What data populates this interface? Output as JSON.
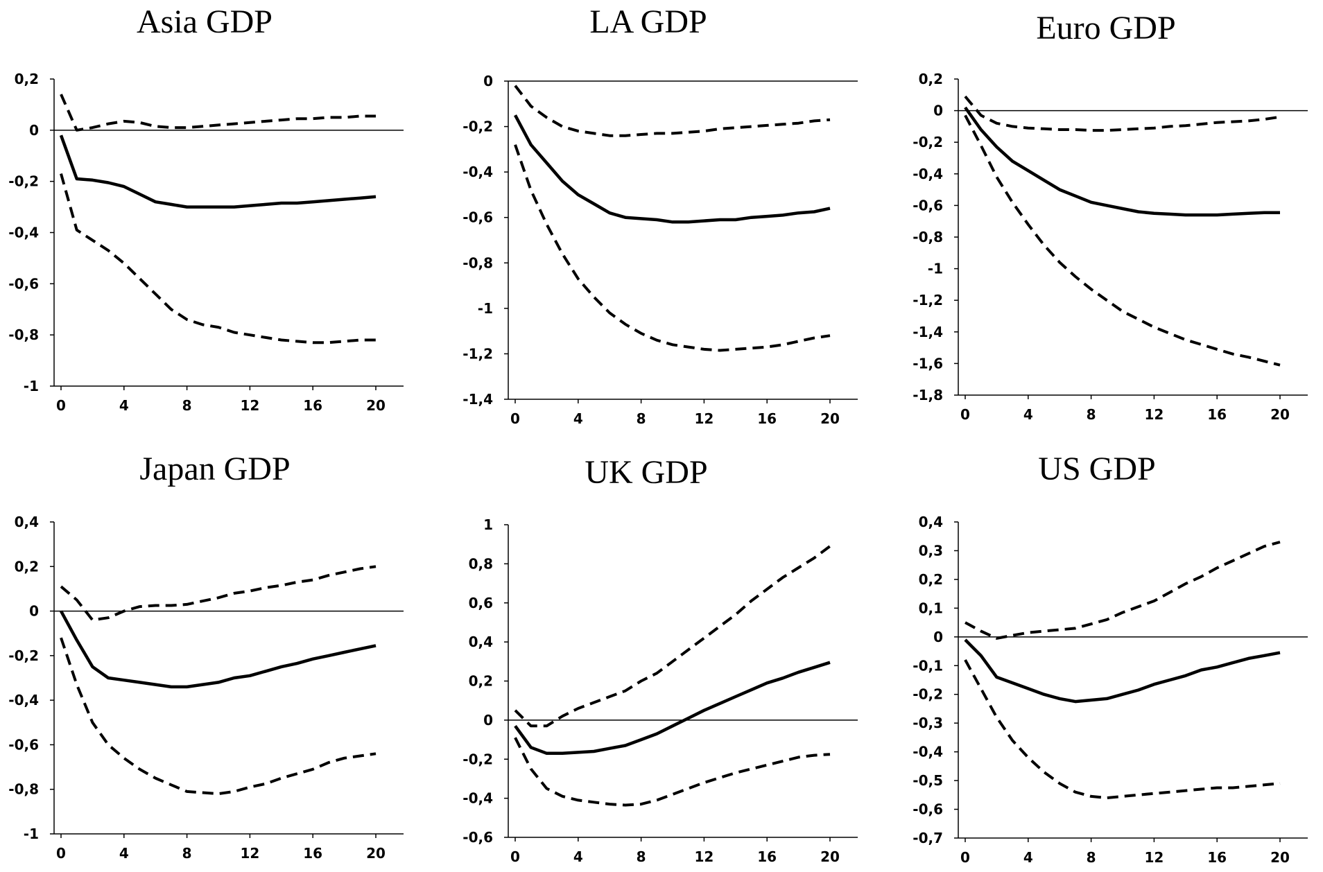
{
  "figure": {
    "background": "#ffffff",
    "line_color": "#000000"
  },
  "chart_data": [
    {
      "id": "asia",
      "type": "line",
      "title": "Asia GDP",
      "xlim": [
        0,
        20
      ],
      "ylim": [
        -1,
        0.2
      ],
      "x_ticks": [
        0,
        4,
        8,
        12,
        16,
        20
      ],
      "x_tick_labels": [
        "0",
        "4",
        "8",
        "12",
        "16",
        "20"
      ],
      "y_ticks": [
        0.2,
        0,
        -0.2,
        -0.4,
        -0.6,
        -0.8,
        -1
      ],
      "y_tick_labels": [
        "0,2",
        "0",
        "-0,2",
        "-0,4",
        "-0,6",
        "-0,8",
        "-1"
      ],
      "x": [
        0,
        1,
        2,
        3,
        4,
        5,
        6,
        7,
        8,
        9,
        10,
        11,
        12,
        13,
        14,
        15,
        16,
        17,
        18,
        19,
        20
      ],
      "series": [
        {
          "name": "upper band",
          "style": "dashed",
          "values": [
            0.14,
            0.0,
            0.01,
            0.025,
            0.035,
            0.03,
            0.015,
            0.01,
            0.01,
            0.015,
            0.02,
            0.025,
            0.03,
            0.035,
            0.04,
            0.045,
            0.045,
            0.05,
            0.05,
            0.055,
            0.055
          ]
        },
        {
          "name": "response",
          "style": "solid",
          "values": [
            -0.02,
            -0.19,
            -0.195,
            -0.205,
            -0.22,
            -0.25,
            -0.28,
            -0.29,
            -0.3,
            -0.3,
            -0.3,
            -0.3,
            -0.295,
            -0.29,
            -0.285,
            -0.285,
            -0.28,
            -0.275,
            -0.27,
            -0.265,
            -0.26
          ]
        },
        {
          "name": "lower band",
          "style": "dashed",
          "values": [
            -0.17,
            -0.39,
            -0.43,
            -0.47,
            -0.52,
            -0.58,
            -0.64,
            -0.7,
            -0.74,
            -0.76,
            -0.77,
            -0.79,
            -0.8,
            -0.81,
            -0.82,
            -0.825,
            -0.83,
            -0.83,
            -0.825,
            -0.82,
            -0.82
          ]
        }
      ]
    },
    {
      "id": "la",
      "type": "line",
      "title": "LA GDP",
      "xlim": [
        0,
        20
      ],
      "ylim": [
        -1.4,
        0
      ],
      "x_ticks": [
        0,
        4,
        8,
        12,
        16,
        20
      ],
      "x_tick_labels": [
        "0",
        "4",
        "8",
        "12",
        "16",
        "20"
      ],
      "y_ticks": [
        0,
        -0.2,
        -0.4,
        -0.6,
        -0.8,
        -1,
        -1.2,
        -1.4
      ],
      "y_tick_labels": [
        "0",
        "-0,2",
        "-0,4",
        "-0,6",
        "-0,8",
        "-1",
        "-1,2",
        "-1,4"
      ],
      "x": [
        0,
        1,
        2,
        3,
        4,
        5,
        6,
        7,
        8,
        9,
        10,
        11,
        12,
        13,
        14,
        15,
        16,
        17,
        18,
        19,
        20
      ],
      "series": [
        {
          "name": "upper band",
          "style": "dashed",
          "values": [
            -0.02,
            -0.11,
            -0.16,
            -0.2,
            -0.22,
            -0.23,
            -0.24,
            -0.24,
            -0.235,
            -0.23,
            -0.23,
            -0.225,
            -0.22,
            -0.21,
            -0.205,
            -0.2,
            -0.195,
            -0.19,
            -0.185,
            -0.175,
            -0.17
          ]
        },
        {
          "name": "response",
          "style": "solid",
          "values": [
            -0.15,
            -0.28,
            -0.36,
            -0.44,
            -0.5,
            -0.54,
            -0.58,
            -0.6,
            -0.605,
            -0.61,
            -0.62,
            -0.62,
            -0.615,
            -0.61,
            -0.61,
            -0.6,
            -0.595,
            -0.59,
            -0.58,
            -0.575,
            -0.56
          ]
        },
        {
          "name": "lower band",
          "style": "dashed",
          "values": [
            -0.28,
            -0.48,
            -0.63,
            -0.76,
            -0.87,
            -0.95,
            -1.02,
            -1.07,
            -1.11,
            -1.14,
            -1.16,
            -1.17,
            -1.18,
            -1.185,
            -1.18,
            -1.175,
            -1.17,
            -1.16,
            -1.145,
            -1.13,
            -1.12
          ]
        }
      ]
    },
    {
      "id": "euro",
      "type": "line",
      "title": "Euro GDP",
      "xlim": [
        0,
        20
      ],
      "ylim": [
        -1.8,
        0.2
      ],
      "x_ticks": [
        0,
        4,
        8,
        12,
        16,
        20
      ],
      "x_tick_labels": [
        "0",
        "4",
        "8",
        "12",
        "16",
        "20"
      ],
      "y_ticks": [
        0.2,
        0,
        -0.2,
        -0.4,
        -0.6,
        -0.8,
        -1,
        -1.2,
        -1.4,
        -1.6,
        -1.8
      ],
      "y_tick_labels": [
        "0,2",
        "0",
        "-0,2",
        "-0,4",
        "-0,6",
        "-0,8",
        "-1",
        "-1,2",
        "-1,4",
        "-1,6",
        "-1,8"
      ],
      "x": [
        0,
        1,
        2,
        3,
        4,
        5,
        6,
        7,
        8,
        9,
        10,
        11,
        12,
        13,
        14,
        15,
        16,
        17,
        18,
        19,
        20
      ],
      "series": [
        {
          "name": "upper band",
          "style": "dashed",
          "values": [
            0.09,
            -0.03,
            -0.08,
            -0.1,
            -0.11,
            -0.115,
            -0.12,
            -0.12,
            -0.125,
            -0.125,
            -0.12,
            -0.115,
            -0.11,
            -0.1,
            -0.095,
            -0.085,
            -0.075,
            -0.07,
            -0.065,
            -0.055,
            -0.04
          ]
        },
        {
          "name": "response",
          "style": "solid",
          "values": [
            0.02,
            -0.12,
            -0.23,
            -0.32,
            -0.38,
            -0.44,
            -0.5,
            -0.54,
            -0.58,
            -0.6,
            -0.62,
            -0.64,
            -0.65,
            -0.655,
            -0.66,
            -0.66,
            -0.66,
            -0.655,
            -0.65,
            -0.645,
            -0.645
          ]
        },
        {
          "name": "lower band",
          "style": "dashed",
          "values": [
            -0.03,
            -0.22,
            -0.42,
            -0.58,
            -0.72,
            -0.85,
            -0.96,
            -1.05,
            -1.13,
            -1.2,
            -1.27,
            -1.32,
            -1.37,
            -1.41,
            -1.45,
            -1.48,
            -1.51,
            -1.54,
            -1.56,
            -1.585,
            -1.61
          ]
        }
      ]
    },
    {
      "id": "japan",
      "type": "line",
      "title": "Japan GDP",
      "xlim": [
        0,
        20
      ],
      "ylim": [
        -1,
        0.4
      ],
      "x_ticks": [
        0,
        4,
        8,
        12,
        16,
        20
      ],
      "x_tick_labels": [
        "0",
        "4",
        "8",
        "12",
        "16",
        "20"
      ],
      "y_ticks": [
        0.4,
        0.2,
        0,
        -0.2,
        -0.4,
        -0.6,
        -0.8,
        -1
      ],
      "y_tick_labels": [
        "0,4",
        "0,2",
        "0",
        "-0,2",
        "-0,4",
        "-0,6",
        "-0,8",
        "-1"
      ],
      "x": [
        0,
        1,
        2,
        3,
        4,
        5,
        6,
        7,
        8,
        9,
        10,
        11,
        12,
        13,
        14,
        15,
        16,
        17,
        18,
        19,
        20
      ],
      "series": [
        {
          "name": "upper band",
          "style": "dashed",
          "values": [
            0.11,
            0.05,
            -0.04,
            -0.03,
            0.0,
            0.02,
            0.025,
            0.025,
            0.03,
            0.045,
            0.06,
            0.08,
            0.09,
            0.105,
            0.115,
            0.13,
            0.14,
            0.16,
            0.175,
            0.19,
            0.2
          ]
        },
        {
          "name": "response",
          "style": "solid",
          "values": [
            0.0,
            -0.13,
            -0.25,
            -0.3,
            -0.31,
            -0.32,
            -0.33,
            -0.34,
            -0.34,
            -0.33,
            -0.32,
            -0.3,
            -0.29,
            -0.27,
            -0.25,
            -0.235,
            -0.215,
            -0.2,
            -0.185,
            -0.17,
            -0.155
          ]
        },
        {
          "name": "lower band",
          "style": "dashed",
          "values": [
            -0.12,
            -0.33,
            -0.5,
            -0.6,
            -0.66,
            -0.71,
            -0.75,
            -0.78,
            -0.81,
            -0.815,
            -0.82,
            -0.81,
            -0.79,
            -0.775,
            -0.75,
            -0.73,
            -0.71,
            -0.68,
            -0.66,
            -0.65,
            -0.64
          ]
        }
      ]
    },
    {
      "id": "uk",
      "type": "line",
      "title": "UK GDP",
      "xlim": [
        0,
        20
      ],
      "ylim": [
        -0.6,
        1
      ],
      "x_ticks": [
        0,
        4,
        8,
        12,
        16,
        20
      ],
      "x_tick_labels": [
        "0",
        "4",
        "8",
        "12",
        "16",
        "20"
      ],
      "y_ticks": [
        1,
        0.8,
        0.6,
        0.4,
        0.2,
        0,
        -0.2,
        -0.4,
        -0.6
      ],
      "y_tick_labels": [
        "1",
        "0,8",
        "0,6",
        "0,4",
        "0,2",
        "0",
        "-0,2",
        "-0,4",
        "-0,6"
      ],
      "x": [
        0,
        1,
        2,
        3,
        4,
        5,
        6,
        7,
        8,
        9,
        10,
        11,
        12,
        13,
        14,
        15,
        16,
        17,
        18,
        19,
        20
      ],
      "series": [
        {
          "name": "upper band",
          "style": "dashed",
          "values": [
            0.05,
            -0.03,
            -0.03,
            0.02,
            0.06,
            0.09,
            0.12,
            0.15,
            0.2,
            0.24,
            0.3,
            0.36,
            0.42,
            0.48,
            0.54,
            0.61,
            0.67,
            0.73,
            0.78,
            0.83,
            0.89
          ]
        },
        {
          "name": "response",
          "style": "solid",
          "values": [
            -0.03,
            -0.14,
            -0.17,
            -0.17,
            -0.165,
            -0.16,
            -0.145,
            -0.13,
            -0.1,
            -0.07,
            -0.03,
            0.01,
            0.05,
            0.085,
            0.12,
            0.155,
            0.19,
            0.215,
            0.245,
            0.27,
            0.295
          ]
        },
        {
          "name": "lower band",
          "style": "dashed",
          "values": [
            -0.09,
            -0.25,
            -0.35,
            -0.39,
            -0.41,
            -0.42,
            -0.43,
            -0.435,
            -0.43,
            -0.41,
            -0.38,
            -0.35,
            -0.32,
            -0.295,
            -0.27,
            -0.25,
            -0.23,
            -0.21,
            -0.19,
            -0.18,
            -0.175
          ]
        }
      ]
    },
    {
      "id": "us",
      "type": "line",
      "title": "US GDP",
      "xlim": [
        0,
        20
      ],
      "ylim": [
        -0.7,
        0.4
      ],
      "x_ticks": [
        0,
        4,
        8,
        12,
        16,
        20
      ],
      "x_tick_labels": [
        "0",
        "4",
        "8",
        "12",
        "16",
        "20"
      ],
      "y_ticks": [
        0.4,
        0.3,
        0.2,
        0.1,
        0,
        -0.1,
        -0.2,
        -0.3,
        -0.4,
        -0.5,
        -0.6,
        -0.7
      ],
      "y_tick_labels": [
        "0,4",
        "0,3",
        "0,2",
        "0,1",
        "0",
        "-0,1",
        "-0,2",
        "-0,3",
        "-0,4",
        "-0,5",
        "-0,6",
        "-0,7"
      ],
      "x": [
        0,
        1,
        2,
        3,
        4,
        5,
        6,
        7,
        8,
        9,
        10,
        11,
        12,
        13,
        14,
        15,
        16,
        17,
        18,
        19,
        20
      ],
      "series": [
        {
          "name": "upper band",
          "style": "dashed",
          "values": [
            0.05,
            0.02,
            -0.005,
            0.005,
            0.015,
            0.02,
            0.025,
            0.03,
            0.045,
            0.06,
            0.085,
            0.105,
            0.125,
            0.155,
            0.185,
            0.21,
            0.24,
            0.265,
            0.29,
            0.315,
            0.33
          ]
        },
        {
          "name": "response",
          "style": "solid",
          "values": [
            -0.01,
            -0.065,
            -0.14,
            -0.16,
            -0.18,
            -0.2,
            -0.215,
            -0.225,
            -0.22,
            -0.215,
            -0.2,
            -0.185,
            -0.165,
            -0.15,
            -0.135,
            -0.115,
            -0.105,
            -0.09,
            -0.075,
            -0.065,
            -0.055
          ]
        },
        {
          "name": "lower band",
          "style": "dashed",
          "values": [
            -0.08,
            -0.18,
            -0.28,
            -0.36,
            -0.42,
            -0.47,
            -0.51,
            -0.54,
            -0.555,
            -0.56,
            -0.555,
            -0.55,
            -0.545,
            -0.54,
            -0.535,
            -0.53,
            -0.525,
            -0.525,
            -0.52,
            -0.515,
            -0.51
          ]
        }
      ]
    }
  ]
}
